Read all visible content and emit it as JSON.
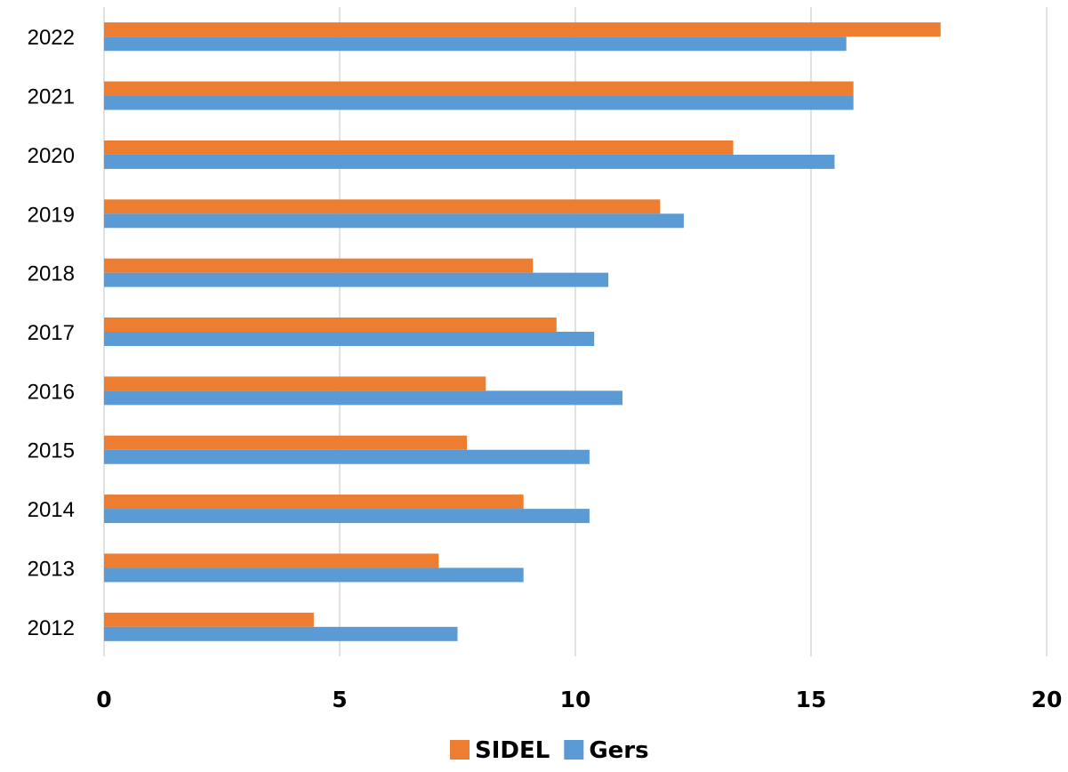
{
  "chart_data": {
    "type": "bar",
    "orientation": "horizontal",
    "categories": [
      "2012",
      "2013",
      "2014",
      "2015",
      "2016",
      "2017",
      "2018",
      "2019",
      "2020",
      "2021",
      "2022"
    ],
    "series": [
      {
        "name": "SIDEL",
        "color": "#ED7D31",
        "values": [
          4.45,
          7.1,
          8.9,
          7.7,
          8.1,
          9.6,
          9.1,
          11.8,
          13.35,
          15.9,
          17.75
        ]
      },
      {
        "name": "Gers",
        "color": "#5B9BD5",
        "values": [
          7.5,
          8.9,
          10.3,
          10.3,
          11.0,
          10.4,
          10.7,
          12.3,
          15.5,
          15.9,
          15.75
        ]
      }
    ],
    "xlim": [
      0,
      20
    ],
    "xticks": [
      "0",
      "5",
      "10",
      "15",
      "20"
    ],
    "title": "",
    "xlabel": "",
    "ylabel": "",
    "grid": "vertical",
    "legend": "bottom-center"
  }
}
